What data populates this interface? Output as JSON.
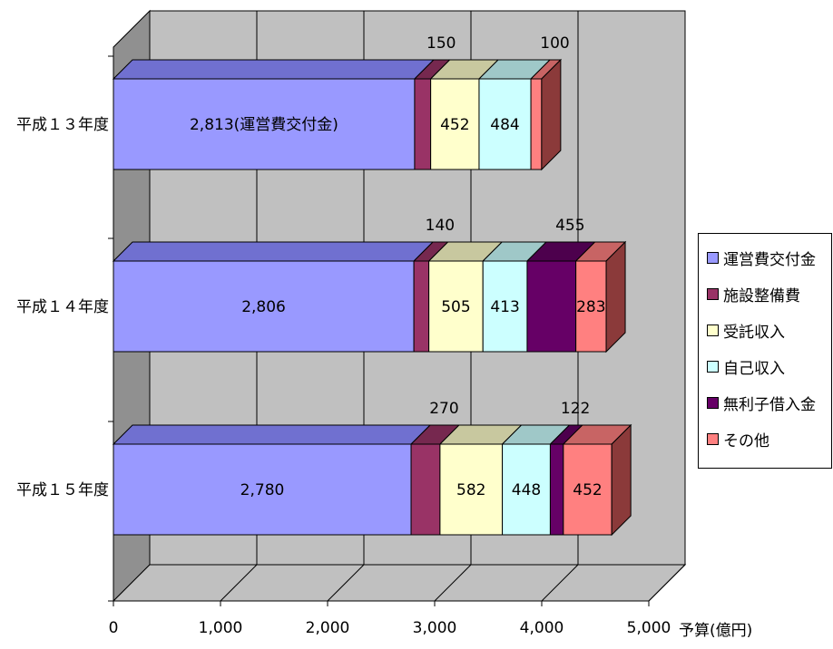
{
  "chart_data": {
    "type": "bar",
    "orientation": "horizontal",
    "stacked": true,
    "style": "3d",
    "categories": [
      "平成１３年度",
      "平成１４年度",
      "平成１５年度"
    ],
    "series": [
      {
        "name": "運営費交付金",
        "values": [
          2813,
          2806,
          2780
        ],
        "color": "#9999ff",
        "top_color": "#7070d0",
        "side_color": "#5d5db8"
      },
      {
        "name": "施設整備費",
        "values": [
          150,
          140,
          270
        ],
        "color": "#993366",
        "top_color": "#76284f",
        "side_color": "#5c1f3d"
      },
      {
        "name": "受託収入",
        "values": [
          452,
          505,
          582
        ],
        "color": "#ffffcc",
        "top_color": "#c8c89f",
        "side_color": "#a0a07f"
      },
      {
        "name": "自己収入",
        "values": [
          484,
          413,
          448
        ],
        "color": "#ccffff",
        "top_color": "#9fc8c8",
        "side_color": "#7fa0a0"
      },
      {
        "name": "無利子借入金",
        "values": [
          0,
          455,
          122
        ],
        "color": "#660066",
        "top_color": "#4d004d",
        "side_color": "#3a003a"
      },
      {
        "name": "その他",
        "values": [
          100,
          283,
          452
        ],
        "color": "#ff8080",
        "top_color": "#c86464",
        "side_color": "#8b3a3a"
      }
    ],
    "data_labels": [
      {
        "category": 0,
        "series": 0,
        "text": "2,813(運営費交付金)",
        "position": "inside"
      },
      {
        "category": 0,
        "series": 1,
        "text": "150",
        "position": "above"
      },
      {
        "category": 0,
        "series": 2,
        "text": "452",
        "position": "inside"
      },
      {
        "category": 0,
        "series": 3,
        "text": "484",
        "position": "inside"
      },
      {
        "category": 0,
        "series": 5,
        "text": "100",
        "position": "above"
      },
      {
        "category": 1,
        "series": 0,
        "text": "2,806",
        "position": "inside"
      },
      {
        "category": 1,
        "series": 1,
        "text": "140",
        "position": "above"
      },
      {
        "category": 1,
        "series": 2,
        "text": "505",
        "position": "inside"
      },
      {
        "category": 1,
        "series": 3,
        "text": "413",
        "position": "inside"
      },
      {
        "category": 1,
        "series": 4,
        "text": "455",
        "position": "above"
      },
      {
        "category": 1,
        "series": 5,
        "text": "283",
        "position": "inside"
      },
      {
        "category": 2,
        "series": 0,
        "text": "2,780",
        "position": "inside"
      },
      {
        "category": 2,
        "series": 1,
        "text": "270",
        "position": "above"
      },
      {
        "category": 2,
        "series": 2,
        "text": "582",
        "position": "inside"
      },
      {
        "category": 2,
        "series": 3,
        "text": "448",
        "position": "inside"
      },
      {
        "category": 2,
        "series": 4,
        "text": "122",
        "position": "above"
      },
      {
        "category": 2,
        "series": 5,
        "text": "452",
        "position": "inside"
      }
    ],
    "xlim": [
      0,
      5000
    ],
    "xticks": [
      0,
      1000,
      2000,
      3000,
      4000,
      5000
    ],
    "xtick_labels": [
      "0",
      "1,000",
      "2,000",
      "3,000",
      "4,000",
      "5,000"
    ],
    "xlabel": "予算(億円)",
    "grid": true,
    "legend": "right",
    "wall_color": "#c0c0c0",
    "floor_color": "#c0c0c0"
  }
}
